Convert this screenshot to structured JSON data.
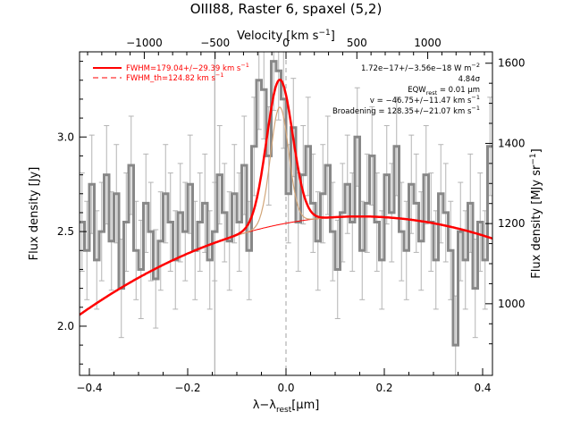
{
  "chart_data": {
    "type": "line",
    "title": "OIII88, Raster 6, spaxel (5,2)",
    "xlabel": "λ−λ",
    "xlabel_sub": "rest",
    "xlabel_unit": "[μm]",
    "ylabel": "Flux density [Jy]",
    "ylabel_right": "Flux density [MJy sr",
    "ylabel_right_sup": "−1",
    "ylabel_right_end": "]",
    "top_axis_label": "Velocity [km s",
    "top_axis_sup": "−1",
    "top_axis_end": "]",
    "xlim": [
      -0.42,
      0.42
    ],
    "ylim": [
      1.74,
      3.45
    ],
    "x_ticks": [
      -0.4,
      -0.2,
      0.0,
      0.2,
      0.4
    ],
    "x_tick_labels": [
      "−0.4",
      "−0.2",
      "0.0",
      "0.2",
      "0.4"
    ],
    "y_ticks": [
      2.0,
      2.5,
      3.0
    ],
    "y_tick_labels": [
      "2.0",
      "2.5",
      "3.0"
    ],
    "top_ticks": [
      -1000,
      -500,
      0,
      500,
      1000
    ],
    "top_tick_labels": [
      "−1000",
      "−500",
      "0",
      "500",
      "1000"
    ],
    "right_ticks": [
      1000,
      1200,
      1400,
      1600
    ],
    "right_tick_labels": [
      "1000",
      "1200",
      "1400",
      "1600"
    ],
    "right_scale": {
      "mjy_per_jy": 472
    },
    "velocity_scale": {
      "x0": 0.0,
      "x_per_kms": 0.0002883
    },
    "legend": [
      {
        "text": "FWHM=179.04+/−29.39 km s",
        "sup": "−1",
        "style": "solid"
      },
      {
        "text": "FWHM_th=124.82 km s",
        "sup": "−1",
        "style": "dashed"
      }
    ],
    "annotations": [
      {
        "text": "1.72e−17+/−3.56e−18 W m",
        "sup": "−2"
      },
      {
        "text": "4.84σ",
        "sup": ""
      },
      {
        "text": "EQW",
        "sub": "rest",
        "text2": " = 0.01 μm"
      },
      {
        "text": "v = −46.75+/−11.47 km s",
        "sup": "−1"
      },
      {
        "text": "Broadening = 128.35+/−21.07 km s",
        "sup": "−1"
      }
    ],
    "continuum": {
      "a": 2.58,
      "center": 0.15,
      "b": -1.6
    },
    "line_fit": {
      "center": -0.013,
      "amp": 0.765,
      "sigma": 0.0265
    },
    "theory_fit": {
      "center": -0.013,
      "amp": 0.62,
      "sigma": 0.0185
    },
    "reference_lines": [
      -0.145,
      0.0
    ],
    "colors": {
      "fit": "#ff0000",
      "data": "#888888",
      "theory": "#d2a679",
      "errorbar": "#b4b4b4",
      "ref": "#a0a0a0"
    },
    "series": [
      {
        "name": "data",
        "x": [
          -0.42,
          -0.41,
          -0.4,
          -0.39,
          -0.38,
          -0.37,
          -0.36,
          -0.35,
          -0.34,
          -0.33,
          -0.32,
          -0.31,
          -0.3,
          -0.29,
          -0.28,
          -0.27,
          -0.26,
          -0.25,
          -0.24,
          -0.23,
          -0.22,
          -0.21,
          -0.2,
          -0.19,
          -0.18,
          -0.17,
          -0.16,
          -0.15,
          -0.14,
          -0.13,
          -0.12,
          -0.11,
          -0.1,
          -0.09,
          -0.08,
          -0.07,
          -0.06,
          -0.05,
          -0.04,
          -0.03,
          -0.02,
          -0.01,
          0.0,
          0.01,
          0.02,
          0.03,
          0.04,
          0.05,
          0.06,
          0.07,
          0.08,
          0.09,
          0.1,
          0.11,
          0.12,
          0.13,
          0.14,
          0.15,
          0.16,
          0.17,
          0.18,
          0.19,
          0.2,
          0.21,
          0.22,
          0.23,
          0.24,
          0.25,
          0.26,
          0.27,
          0.28,
          0.29,
          0.3,
          0.31,
          0.32,
          0.33,
          0.34,
          0.35,
          0.36,
          0.37,
          0.38,
          0.39,
          0.4,
          0.41
        ],
        "values": [
          2.55,
          2.4,
          2.75,
          2.35,
          2.5,
          2.8,
          2.45,
          2.7,
          2.2,
          2.55,
          2.85,
          2.4,
          2.3,
          2.65,
          2.5,
          2.25,
          2.45,
          2.7,
          2.55,
          2.35,
          2.6,
          2.5,
          2.75,
          2.4,
          2.55,
          2.65,
          2.35,
          2.5,
          2.8,
          2.6,
          2.45,
          2.7,
          2.55,
          2.85,
          2.4,
          2.95,
          3.3,
          3.25,
          2.9,
          3.4,
          3.35,
          3.2,
          2.7,
          3.05,
          2.55,
          2.8,
          2.95,
          2.65,
          2.45,
          2.7,
          2.85,
          2.5,
          2.3,
          2.6,
          2.75,
          2.55,
          3.0,
          2.4,
          2.65,
          2.9,
          2.55,
          2.35,
          2.8,
          2.6,
          2.95,
          2.5,
          2.4,
          2.75,
          2.65,
          2.45,
          2.8,
          2.55,
          2.35,
          2.7,
          2.6,
          2.4,
          1.9,
          2.5,
          2.35,
          2.65,
          2.2,
          2.55,
          2.35,
          2.95
        ],
        "err": 0.26
      }
    ]
  }
}
